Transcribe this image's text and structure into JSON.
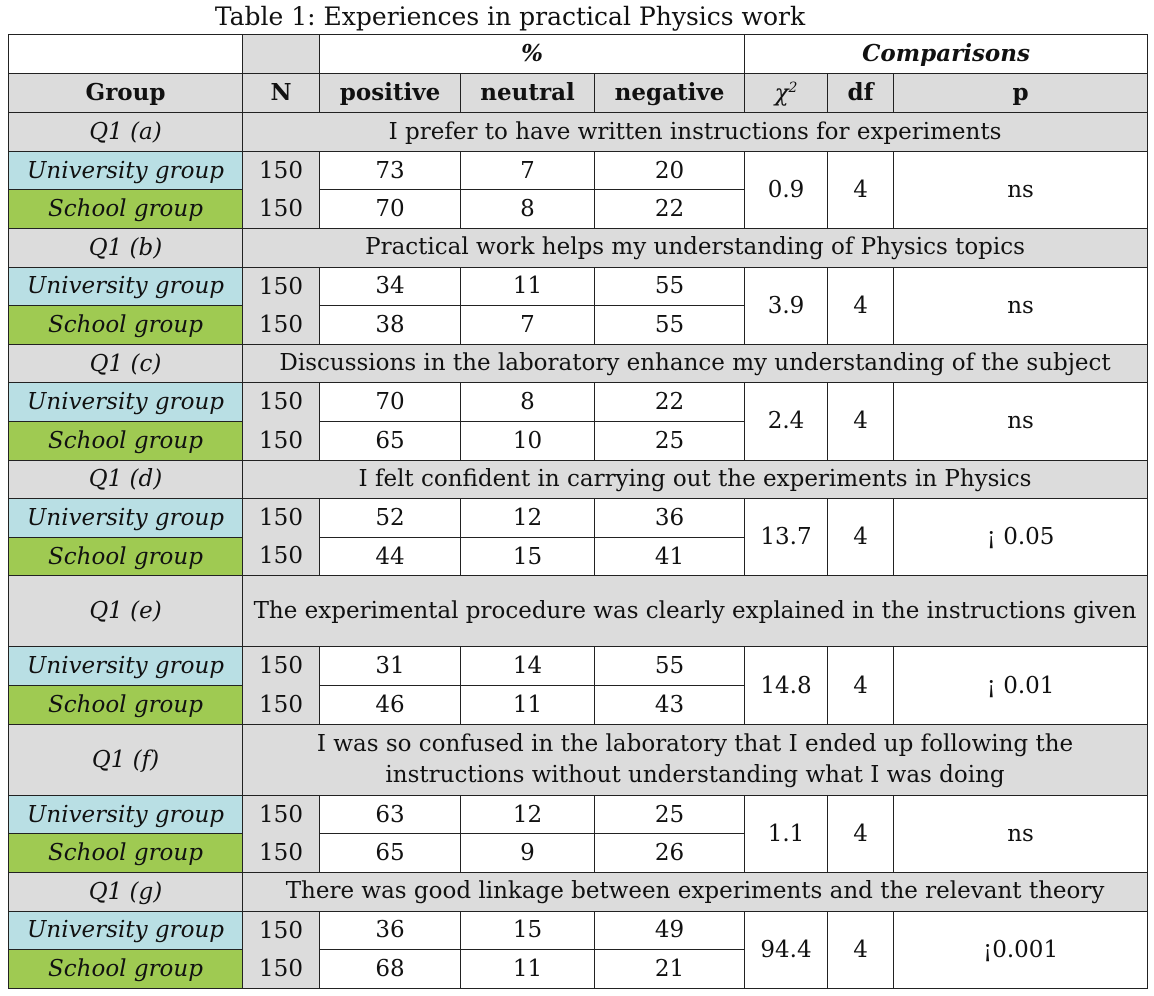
{
  "caption": "Table 1: Experiences in practical Physics work",
  "header": {
    "percent": "%",
    "comparisons": "Comparisons",
    "group": "Group",
    "n": "N",
    "positive": "positive",
    "neutral": "neutral",
    "negative": "negative",
    "chi_symbol": "χ",
    "chi_sup": "2",
    "df": "df",
    "p": "p"
  },
  "colors": {
    "university": "#b9dfe4",
    "school": "#9fca52",
    "header_gray": "#dcdcdc"
  },
  "questions": [
    {
      "id": "Q1 (a)",
      "text": "I prefer to have written instructions for experiments",
      "chi2": "0.9",
      "df": "4",
      "p": "ns",
      "uni": {
        "label": "University group",
        "n": "150",
        "positive": "73",
        "neutral": "7",
        "negative": "20"
      },
      "school": {
        "label": "School group",
        "n": "150",
        "positive": "70",
        "neutral": "8",
        "negative": "22"
      }
    },
    {
      "id": "Q1 (b)",
      "text": "Practical work helps my understanding of Physics topics",
      "chi2": "3.9",
      "df": "4",
      "p": "ns",
      "uni": {
        "label": "University group",
        "n": "150",
        "positive": "34",
        "neutral": "11",
        "negative": "55"
      },
      "school": {
        "label": "School group",
        "n": "150",
        "positive": "38",
        "neutral": "7",
        "negative": "55"
      }
    },
    {
      "id": "Q1 (c)",
      "text": "Discussions in the laboratory enhance my understanding of the subject",
      "chi2": "2.4",
      "df": "4",
      "p": "ns",
      "uni": {
        "label": "University group",
        "n": "150",
        "positive": "70",
        "neutral": "8",
        "negative": "22"
      },
      "school": {
        "label": "School group",
        "n": "150",
        "positive": "65",
        "neutral": "10",
        "negative": "25"
      }
    },
    {
      "id": "Q1 (d)",
      "text": "I felt confident in carrying out the experiments in Physics",
      "chi2": "13.7",
      "df": "4",
      "p": "¡ 0.05",
      "uni": {
        "label": "University group",
        "n": "150",
        "positive": "52",
        "neutral": "12",
        "negative": "36"
      },
      "school": {
        "label": "School group",
        "n": "150",
        "positive": "44",
        "neutral": "15",
        "negative": "41"
      }
    },
    {
      "id": "Q1 (e)",
      "text": "The experimental procedure was clearly explained in the instructions given",
      "chi2": "14.8",
      "df": "4",
      "p": "¡ 0.01",
      "uni": {
        "label": "University group",
        "n": "150",
        "positive": "31",
        "neutral": "14",
        "negative": "55"
      },
      "school": {
        "label": "School group",
        "n": "150",
        "positive": "46",
        "neutral": "11",
        "negative": "43"
      }
    },
    {
      "id": "Q1 (f)",
      "text": "I was so confused in the laboratory that I ended up following the instructions without understanding what I was doing",
      "chi2": "1.1",
      "df": "4",
      "p": "ns",
      "uni": {
        "label": "University group",
        "n": "150",
        "positive": "63",
        "neutral": "12",
        "negative": "25"
      },
      "school": {
        "label": "School group",
        "n": "150",
        "positive": "65",
        "neutral": "9",
        "negative": "26"
      }
    },
    {
      "id": "Q1 (g)",
      "text": "There was good linkage between experiments and the relevant theory",
      "chi2": "94.4",
      "df": "4",
      "p": "¡0.001",
      "uni": {
        "label": "University group",
        "n": "150",
        "positive": "36",
        "neutral": "15",
        "negative": "49"
      },
      "school": {
        "label": "School group",
        "n": "150",
        "positive": "68",
        "neutral": "11",
        "negative": "21"
      }
    }
  ]
}
